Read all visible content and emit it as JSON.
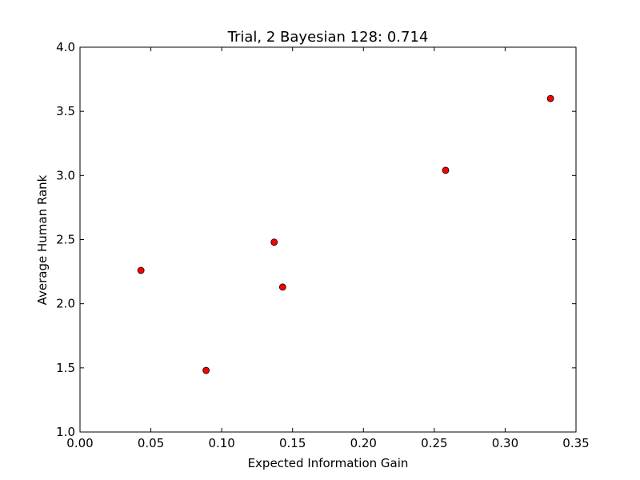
{
  "chart_data": {
    "type": "scatter",
    "title": "Trial, 2 Bayesian 128: 0.714",
    "xlabel": "Expected Information Gain",
    "ylabel": "Average Human Rank",
    "xlim": [
      0.0,
      0.35
    ],
    "ylim": [
      1.0,
      4.0
    ],
    "xticks": [
      "0.00",
      "0.05",
      "0.10",
      "0.15",
      "0.20",
      "0.25",
      "0.30",
      "0.35"
    ],
    "yticks": [
      "1.0",
      "1.5",
      "2.0",
      "2.5",
      "3.0",
      "3.5",
      "4.0"
    ],
    "grid": false,
    "marker_color": "#ff0000",
    "marker_edge_color": "#000000",
    "points": [
      {
        "x": 0.043,
        "y": 2.26
      },
      {
        "x": 0.089,
        "y": 1.48
      },
      {
        "x": 0.137,
        "y": 2.48
      },
      {
        "x": 0.143,
        "y": 2.13
      },
      {
        "x": 0.258,
        "y": 3.04
      },
      {
        "x": 0.332,
        "y": 3.6
      }
    ]
  }
}
